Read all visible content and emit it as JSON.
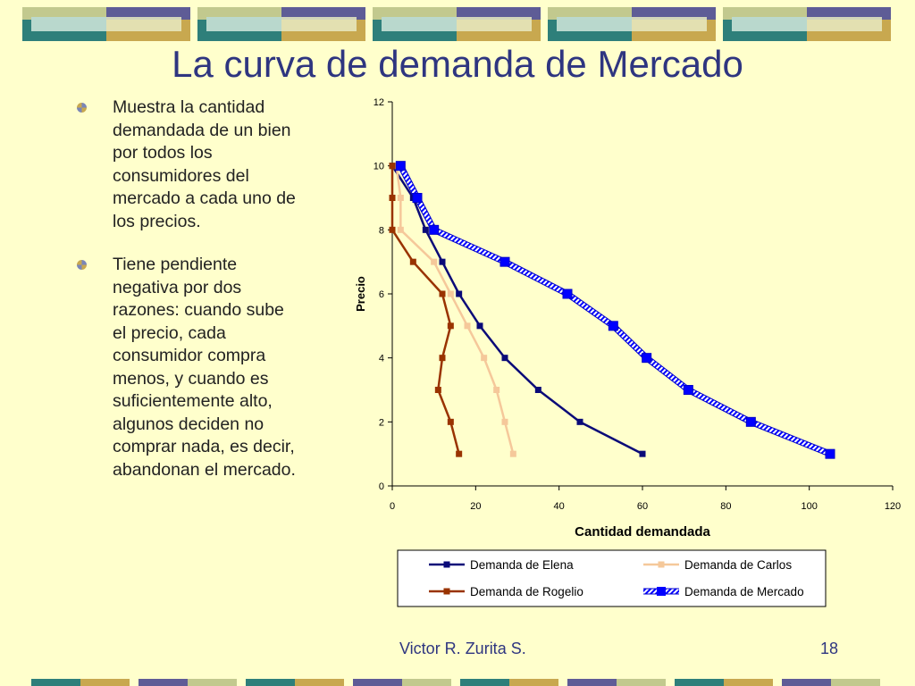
{
  "slide": {
    "title": "La curva de demanda de Mercado",
    "bullets": [
      "Muestra la cantidad demandada de un bien por todos los consumidores del mercado a cada uno de los precios.",
      "Tiene pendiente negativa por dos razones: cuando sube el precio, cada consumidor compra menos, y cuando es suficientemente alto, algunos deciden no comprar nada, es decir, abandonan el mercado."
    ],
    "footer_author": "Victor R. Zurita S.",
    "page_number": "18"
  },
  "colors": {
    "background": "#FFFFCC",
    "title": "#2E3580",
    "elena": "#0A0A78",
    "carlos": "#F5C89A",
    "rogelio": "#993300",
    "mercado": "#0000FF"
  },
  "chart_data": {
    "type": "line",
    "xlabel": "Cantidad demandada",
    "ylabel": "Precio",
    "xlim": [
      0,
      120
    ],
    "ylim": [
      0,
      12
    ],
    "xticks": [
      0,
      20,
      40,
      60,
      80,
      100,
      120
    ],
    "yticks": [
      0,
      2,
      4,
      6,
      8,
      10,
      12
    ],
    "grid": false,
    "legend": "bottom",
    "series": [
      {
        "name": "Demanda de Elena",
        "color": "#0A0A78",
        "style": "solid",
        "x": [
          0,
          5,
          8,
          12,
          16,
          21,
          27,
          35,
          45,
          60
        ],
        "y": [
          10,
          9,
          8,
          7,
          6,
          5,
          4,
          3,
          2,
          1
        ]
      },
      {
        "name": "Demanda de Carlos",
        "color": "#F5C89A",
        "style": "solid",
        "x": [
          1,
          2,
          2,
          10,
          14,
          18,
          22,
          25,
          27,
          29
        ],
        "y": [
          10,
          9,
          8,
          7,
          6,
          5,
          4,
          3,
          2,
          1
        ]
      },
      {
        "name": "Demanda de Rogelio",
        "color": "#993300",
        "style": "solid",
        "x": [
          0,
          0,
          0,
          5,
          12,
          14,
          12,
          11,
          14,
          16
        ],
        "y": [
          10,
          9,
          8,
          7,
          6,
          5,
          4,
          3,
          2,
          1
        ]
      },
      {
        "name": "Demanda de Mercado",
        "color": "#0000FF",
        "style": "hatched",
        "x": [
          2,
          6,
          10,
          27,
          42,
          53,
          61,
          71,
          86,
          105
        ],
        "y": [
          10,
          9,
          8,
          7,
          6,
          5,
          4,
          3,
          2,
          1
        ]
      }
    ]
  }
}
